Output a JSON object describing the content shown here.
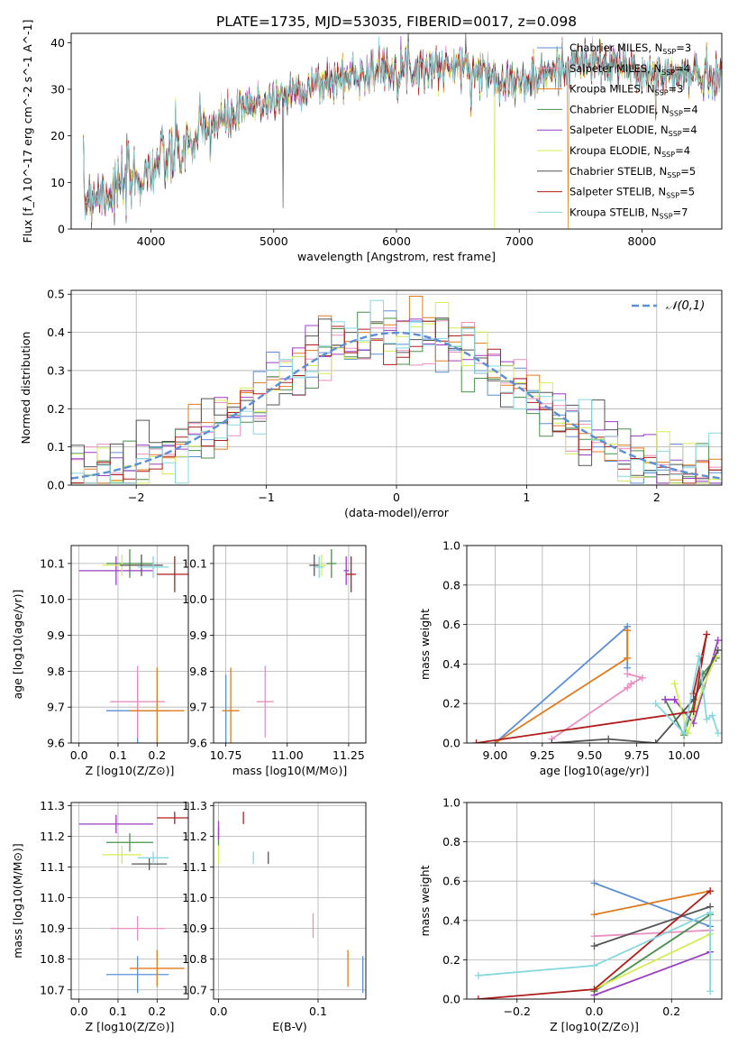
{
  "figure": {
    "title": "PLATE=1735, MJD=53035, FIBERID=0017, z=0.098"
  },
  "models": [
    {
      "name": "Chabrier MILES",
      "nssp": "3",
      "color": "#5b8fd6"
    },
    {
      "name": "Salpeter MILES",
      "nssp": "4",
      "color": "#e98fbf"
    },
    {
      "name": "Kroupa MILES",
      "nssp": "3",
      "color": "#e07b1e"
    },
    {
      "name": "Chabrier ELODIE",
      "nssp": "4",
      "color": "#4a8f4a"
    },
    {
      "name": "Salpeter ELODIE",
      "nssp": "4",
      "color": "#9b3fc2"
    },
    {
      "name": "Kroupa ELODIE",
      "nssp": "4",
      "color": "#d6ec55"
    },
    {
      "name": "Chabrier STELIB",
      "nssp": "5",
      "color": "#555555"
    },
    {
      "name": "Salpeter STELIB",
      "nssp": "5",
      "color": "#b01e1e"
    },
    {
      "name": "Kroupa STELIB",
      "nssp": "7",
      "color": "#86d8df"
    }
  ],
  "chart_data": [
    {
      "id": "spectrum",
      "type": "line",
      "xlabel": "wavelength [Angstrom, rest frame]",
      "ylabel": "Flux [f_λ 10^-17 erg cm^-2 s^-1 A^-1]",
      "xlim": [
        3350,
        8650
      ],
      "ylim": [
        0,
        42
      ],
      "xticks": [
        4000,
        5000,
        6000,
        7000,
        8000
      ],
      "yticks": [
        0,
        10,
        20,
        30,
        40
      ],
      "grid": false,
      "legend": "top-right",
      "continuum": [
        [
          3450,
          7
        ],
        [
          3700,
          8.5
        ],
        [
          3900,
          11
        ],
        [
          4000,
          13
        ],
        [
          4200,
          16
        ],
        [
          4500,
          22
        ],
        [
          4800,
          26
        ],
        [
          5000,
          28
        ],
        [
          5200,
          30
        ],
        [
          5500,
          32
        ],
        [
          5800,
          34
        ],
        [
          6000,
          35
        ],
        [
          6300,
          34.5
        ],
        [
          6500,
          35
        ],
        [
          6800,
          33
        ],
        [
          7000,
          31
        ],
        [
          7200,
          33
        ],
        [
          7500,
          36
        ],
        [
          7800,
          35
        ],
        [
          8100,
          33
        ],
        [
          8400,
          33
        ],
        [
          8600,
          33
        ]
      ],
      "notable_features": [
        {
          "x": 5075,
          "y": 4.5,
          "model": "Chabrier STELIB"
        },
        {
          "x": 6562,
          "y": 42,
          "model": "Chabrier STELIB"
        },
        {
          "x": 6800,
          "y": 0,
          "model": "Kroupa ELODIE"
        },
        {
          "x": 7400,
          "y": 0,
          "model": "Kroupa MILES"
        }
      ]
    },
    {
      "id": "residuals",
      "type": "step",
      "xlabel": "(data-model)/error",
      "ylabel": "Normed distribution",
      "xlim": [
        -2.5,
        2.5
      ],
      "ylim": [
        0,
        0.51
      ],
      "xticks": [
        -2,
        -1,
        0,
        1,
        2
      ],
      "yticks": [
        0.0,
        0.1,
        0.2,
        0.3,
        0.4,
        0.5
      ],
      "grid": true,
      "legend": "top-right",
      "reference_label": "𝒩(0,1)",
      "reference_color": "#5b8fd6",
      "bin_width": 0.1,
      "bin_start": -2.5
    },
    {
      "id": "age-vs-Z",
      "type": "errorbar",
      "xlabel": "Z [log10(Z/Z⊙)]",
      "ylabel": "age [log10(age/yr)]",
      "xlim": [
        -0.02,
        0.28
      ],
      "ylim": [
        9.6,
        10.15
      ],
      "xticks": [
        0.0,
        0.1,
        0.2
      ],
      "yticks": [
        9.6,
        9.7,
        9.8,
        9.9,
        10.0,
        10.1
      ],
      "grid": true,
      "points": [
        {
          "model": "Chabrier MILES",
          "x": 0.15,
          "y": 9.69,
          "xerr": 0.08,
          "yerr": 0.1
        },
        {
          "model": "Salpeter MILES",
          "x": 0.15,
          "y": 9.715,
          "xerr": 0.07,
          "yerr": 0.1
        },
        {
          "model": "Kroupa MILES",
          "x": 0.2,
          "y": 9.69,
          "xerr": 0.07,
          "yerr": 0.12
        },
        {
          "model": "Chabrier ELODIE",
          "x": 0.13,
          "y": 10.1,
          "xerr": 0.06,
          "yerr": 0.04
        },
        {
          "model": "Salpeter ELODIE",
          "x": 0.095,
          "y": 10.08,
          "xerr": 0.095,
          "yerr": 0.04
        },
        {
          "model": "Kroupa ELODIE",
          "x": 0.11,
          "y": 10.095,
          "xerr": 0.05,
          "yerr": 0.03
        },
        {
          "model": "Chabrier STELIB",
          "x": 0.16,
          "y": 10.095,
          "xerr": 0.055,
          "yerr": 0.03
        },
        {
          "model": "Salpeter STELIB",
          "x": 0.245,
          "y": 10.07,
          "xerr": 0.045,
          "yerr": 0.05
        },
        {
          "model": "Kroupa STELIB",
          "x": 0.19,
          "y": 10.09,
          "xerr": 0.04,
          "yerr": 0.03
        }
      ]
    },
    {
      "id": "age-vs-mass",
      "type": "errorbar",
      "xlabel": "mass [log10(M/M⊙)]",
      "ylabel": "",
      "xlim": [
        10.7,
        11.32
      ],
      "ylim": [
        9.6,
        10.15
      ],
      "xticks": [
        10.75,
        11.0,
        11.25
      ],
      "yticks": [
        9.6,
        9.7,
        9.8,
        9.9,
        10.0,
        10.1
      ],
      "grid": true,
      "points": [
        {
          "model": "Chabrier MILES",
          "x": 10.75,
          "y": 9.69,
          "xerr": 0.0,
          "yerr": 0.1
        },
        {
          "model": "Salpeter MILES",
          "x": 10.91,
          "y": 9.715,
          "xerr": 0.035,
          "yerr": 0.1
        },
        {
          "model": "Kroupa MILES",
          "x": 10.77,
          "y": 9.69,
          "xerr": 0.035,
          "yerr": 0.12
        },
        {
          "model": "Chabrier ELODIE",
          "x": 11.18,
          "y": 10.1,
          "xerr": 0.02,
          "yerr": 0.04
        },
        {
          "model": "Salpeter ELODIE",
          "x": 11.24,
          "y": 10.08,
          "xerr": 0.01,
          "yerr": 0.04
        },
        {
          "model": "Kroupa ELODIE",
          "x": 11.14,
          "y": 10.095,
          "xerr": 0.02,
          "yerr": 0.03
        },
        {
          "model": "Chabrier STELIB",
          "x": 11.11,
          "y": 10.095,
          "xerr": 0.02,
          "yerr": 0.03
        },
        {
          "model": "Salpeter STELIB",
          "x": 11.26,
          "y": 10.07,
          "xerr": 0.02,
          "yerr": 0.05
        },
        {
          "model": "Kroupa STELIB",
          "x": 11.13,
          "y": 10.09,
          "xerr": 0.02,
          "yerr": 0.03
        }
      ]
    },
    {
      "id": "mass-vs-Z",
      "type": "errorbar",
      "xlabel": "Z [log10(Z/Z⊙)]",
      "ylabel": "mass [log10(M/M⊙)]",
      "xlim": [
        -0.02,
        0.28
      ],
      "ylim": [
        10.67,
        11.31
      ],
      "xticks": [
        0.0,
        0.1,
        0.2
      ],
      "yticks": [
        10.7,
        10.8,
        10.9,
        11.0,
        11.1,
        11.2,
        11.3
      ],
      "grid": true,
      "points": [
        {
          "model": "Chabrier MILES",
          "x": 0.15,
          "y": 10.75,
          "xerr": 0.08,
          "yerr": 0.06
        },
        {
          "model": "Salpeter MILES",
          "x": 0.15,
          "y": 10.9,
          "xerr": 0.07,
          "yerr": 0.04
        },
        {
          "model": "Kroupa MILES",
          "x": 0.2,
          "y": 10.77,
          "xerr": 0.07,
          "yerr": 0.06
        },
        {
          "model": "Chabrier ELODIE",
          "x": 0.13,
          "y": 11.18,
          "xerr": 0.06,
          "yerr": 0.03
        },
        {
          "model": "Salpeter ELODIE",
          "x": 0.095,
          "y": 11.24,
          "xerr": 0.095,
          "yerr": 0.03
        },
        {
          "model": "Kroupa ELODIE",
          "x": 0.11,
          "y": 11.14,
          "xerr": 0.05,
          "yerr": 0.03
        },
        {
          "model": "Chabrier STELIB",
          "x": 0.18,
          "y": 11.11,
          "xerr": 0.045,
          "yerr": 0.02
        },
        {
          "model": "Salpeter STELIB",
          "x": 0.245,
          "y": 11.26,
          "xerr": 0.045,
          "yerr": 0.02
        },
        {
          "model": "Kroupa STELIB",
          "x": 0.19,
          "y": 11.13,
          "xerr": 0.04,
          "yerr": 0.02
        }
      ]
    },
    {
      "id": "mass-vs-ebv",
      "type": "errorbar",
      "xlabel": "E(B-V)",
      "ylabel": "",
      "xlim": [
        -0.005,
        0.148
      ],
      "ylim": [
        10.67,
        11.31
      ],
      "xticks": [
        0.0,
        0.1
      ],
      "yticks": [
        10.7,
        10.8,
        10.9,
        11.0,
        11.1,
        11.2,
        11.3
      ],
      "grid": true,
      "points": [
        {
          "model": "Chabrier MILES",
          "x": 0.145,
          "y": 10.75,
          "xerr": 0,
          "yerr": 0.06
        },
        {
          "model": "Salpeter MILES",
          "x": 0.095,
          "y": 10.91,
          "xerr": 0,
          "yerr": 0.04
        },
        {
          "model": "Kroupa MILES",
          "x": 0.13,
          "y": 10.77,
          "xerr": 0,
          "yerr": 0.06
        },
        {
          "model": "Chabrier ELODIE",
          "x": 0.0,
          "y": 11.2,
          "xerr": 0,
          "yerr": 0.03
        },
        {
          "model": "Salpeter ELODIE",
          "x": 0.0,
          "y": 11.22,
          "xerr": 0,
          "yerr": 0.03
        },
        {
          "model": "Kroupa ELODIE",
          "x": 0.0,
          "y": 11.14,
          "xerr": 0,
          "yerr": 0.03
        },
        {
          "model": "Chabrier STELIB",
          "x": 0.05,
          "y": 11.13,
          "xerr": 0,
          "yerr": 0.02
        },
        {
          "model": "Salpeter STELIB",
          "x": 0.025,
          "y": 11.26,
          "xerr": 0,
          "yerr": 0.02
        },
        {
          "model": "Kroupa STELIB",
          "x": 0.035,
          "y": 11.13,
          "xerr": 0,
          "yerr": 0.02
        }
      ]
    },
    {
      "id": "massweight-vs-age",
      "type": "line",
      "xlabel": "age [log10(age/yr)]",
      "ylabel": "mass weight",
      "xlim": [
        8.85,
        10.2
      ],
      "ylim": [
        0.0,
        1.0
      ],
      "xticks": [
        9.0,
        9.25,
        9.5,
        9.75,
        10.0
      ],
      "yticks": [
        0.0,
        0.2,
        0.4,
        0.6,
        0.8,
        1.0
      ],
      "grid": true,
      "series": [
        {
          "model": "Chabrier MILES",
          "points": [
            [
              9.0,
              0.0
            ],
            [
              9.7,
              0.59
            ],
            [
              9.7,
              0.38
            ]
          ]
        },
        {
          "model": "Salpeter MILES",
          "points": [
            [
              9.3,
              0.02
            ],
            [
              9.7,
              0.28
            ],
            [
              9.72,
              0.3
            ],
            [
              9.78,
              0.33
            ],
            [
              9.7,
              0.35
            ]
          ]
        },
        {
          "model": "Kroupa MILES",
          "points": [
            [
              9.0,
              0.0
            ],
            [
              9.7,
              0.43
            ],
            [
              9.7,
              0.57
            ]
          ]
        },
        {
          "model": "Chabrier ELODIE",
          "points": [
            [
              9.9,
              0.22
            ],
            [
              10.0,
              0.04
            ],
            [
              10.1,
              0.35
            ],
            [
              10.17,
              0.43
            ]
          ]
        },
        {
          "model": "Salpeter ELODIE",
          "points": [
            [
              9.9,
              0.22
            ],
            [
              9.95,
              0.22
            ],
            [
              10.05,
              0.1
            ],
            [
              10.18,
              0.52
            ]
          ]
        },
        {
          "model": "Kroupa ELODIE",
          "points": [
            [
              9.95,
              0.3
            ],
            [
              10.02,
              0.05
            ],
            [
              10.1,
              0.28
            ],
            [
              10.17,
              0.44
            ]
          ]
        },
        {
          "model": "Chabrier STELIB",
          "points": [
            [
              9.3,
              0.0
            ],
            [
              9.6,
              0.02
            ],
            [
              9.85,
              0.0
            ],
            [
              10.05,
              0.22
            ],
            [
              10.18,
              0.47
            ]
          ]
        },
        {
          "model": "Salpeter STELIB",
          "points": [
            [
              8.9,
              0.0
            ],
            [
              10.05,
              0.16
            ],
            [
              10.12,
              0.55
            ],
            [
              10.05,
              0.25
            ]
          ]
        },
        {
          "model": "Kroupa STELIB",
          "points": [
            [
              9.85,
              0.2
            ],
            [
              10.0,
              0.05
            ],
            [
              10.08,
              0.44
            ],
            [
              10.12,
              0.12
            ],
            [
              10.15,
              0.14
            ],
            [
              10.18,
              0.05
            ]
          ]
        }
      ]
    },
    {
      "id": "massweight-vs-Z",
      "type": "line",
      "xlabel": "Z [log10(Z/Z⊙)]",
      "ylabel": "mass weight",
      "xlim": [
        -0.33,
        0.33
      ],
      "ylim": [
        0.0,
        1.0
      ],
      "xticks": [
        -0.2,
        0.0,
        0.2
      ],
      "yticks": [
        0.0,
        0.2,
        0.4,
        0.6,
        0.8,
        1.0
      ],
      "grid": true,
      "series": [
        {
          "model": "Chabrier MILES",
          "points": [
            [
              0.0,
              0.59
            ],
            [
              0.3,
              0.37
            ]
          ]
        },
        {
          "model": "Salpeter MILES",
          "points": [
            [
              0.0,
              0.32
            ],
            [
              0.3,
              0.35
            ]
          ]
        },
        {
          "model": "Kroupa MILES",
          "points": [
            [
              0.0,
              0.43
            ],
            [
              0.3,
              0.55
            ]
          ]
        },
        {
          "model": "Chabrier ELODIE",
          "points": [
            [
              0.0,
              0.04
            ],
            [
              0.3,
              0.43
            ]
          ]
        },
        {
          "model": "Salpeter ELODIE",
          "points": [
            [
              0.0,
              0.02
            ],
            [
              0.3,
              0.24
            ]
          ]
        },
        {
          "model": "Kroupa ELODIE",
          "points": [
            [
              0.0,
              0.05
            ],
            [
              0.3,
              0.33
            ]
          ]
        },
        {
          "model": "Chabrier STELIB",
          "points": [
            [
              0.0,
              0.27
            ],
            [
              0.3,
              0.47
            ]
          ]
        },
        {
          "model": "Salpeter STELIB",
          "points": [
            [
              -0.3,
              0.0
            ],
            [
              0.0,
              0.05
            ],
            [
              0.3,
              0.55
            ]
          ]
        },
        {
          "model": "Kroupa STELIB",
          "points": [
            [
              -0.3,
              0.12
            ],
            [
              0.0,
              0.17
            ],
            [
              0.3,
              0.44
            ],
            [
              0.3,
              0.04
            ]
          ]
        }
      ]
    }
  ]
}
